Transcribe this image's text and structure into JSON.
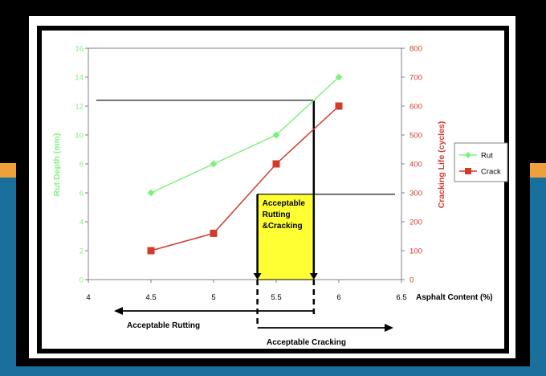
{
  "colors": {
    "rut": "#7ef07e",
    "crack": "#d23a2a",
    "acceptable_box": "#ffff33",
    "left_axis": "#7ef07e",
    "right_axis": "#d23a2a",
    "orange_band": "#f0a03a",
    "blue_band": "#1b6f9c"
  },
  "chart_data": {
    "type": "line",
    "x": [
      4.5,
      5,
      5.5,
      6
    ],
    "xlim": [
      4,
      6.5
    ],
    "xticks": [
      "4",
      "4.5",
      "5",
      "5.5",
      "6",
      "6.5"
    ],
    "xlabel": "Asphalt Content (%)",
    "ylabel_left": "Rut Depth (mm)",
    "ylim_left": [
      0,
      16
    ],
    "yticks_left": [
      "0",
      "2",
      "4",
      "6",
      "8",
      "10",
      "12",
      "14",
      "16"
    ],
    "ylabel_right": "Cracking Life (cycles)",
    "ylim_right": [
      0,
      800
    ],
    "yticks_right": [
      "0",
      "100",
      "200",
      "300",
      "400",
      "500",
      "600",
      "700",
      "800"
    ],
    "series": [
      {
        "name": "Rut",
        "axis": "left",
        "marker": "diamond",
        "values": [
          6,
          8,
          10,
          14
        ]
      },
      {
        "name": "Crack",
        "axis": "right",
        "marker": "square",
        "values": [
          100,
          160,
          400,
          600
        ]
      }
    ],
    "legend_position": "right",
    "thresholds": {
      "rut_depth_limit": 12.4,
      "cracking_life_limit": 295
    },
    "acceptable_range": {
      "cracking_min": 5.35,
      "rutting_max": 5.8
    },
    "annotations": {
      "box_label": [
        "Acceptable",
        "Rutting",
        "&Cracking"
      ],
      "left_arrow_label": "Acceptable  Rutting",
      "right_arrow_label": "Acceptable  Cracking"
    }
  }
}
